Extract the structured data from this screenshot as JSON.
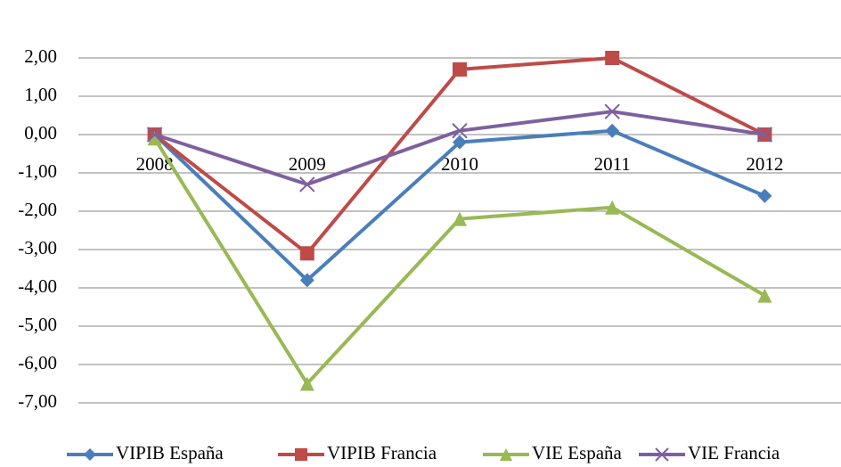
{
  "chart_data": {
    "type": "line",
    "categories": [
      "2008",
      "2009",
      "2010",
      "2011",
      "2012"
    ],
    "series": [
      {
        "name": "VIPIB España",
        "color": "#4a7ebb",
        "marker": "diamond",
        "values": [
          0,
          -3.8,
          -0.2,
          0.1,
          -1.6
        ]
      },
      {
        "name": "VIPIB Francia",
        "color": "#be4b48",
        "marker": "square",
        "values": [
          0,
          -3.1,
          1.7,
          2.0,
          0
        ]
      },
      {
        "name": "VIE España",
        "color": "#98b954",
        "marker": "triangle",
        "values": [
          -0.1,
          -6.5,
          -2.2,
          -1.9,
          -4.2
        ]
      },
      {
        "name": "VIE Francia",
        "color": "#7d60a0",
        "marker": "x",
        "values": [
          0,
          -1.3,
          0.1,
          0.6,
          0
        ]
      }
    ],
    "ylim": [
      -8,
      3
    ],
    "yticks": [
      {
        "value": 2,
        "label": "2,00"
      },
      {
        "value": 1,
        "label": "1,00"
      },
      {
        "value": 0,
        "label": "0,00"
      },
      {
        "value": -1,
        "label": "-1,00"
      },
      {
        "value": -2,
        "label": "-2,00"
      },
      {
        "value": -3,
        "label": "-3,00"
      },
      {
        "value": -4,
        "label": "-4,00"
      },
      {
        "value": -5,
        "label": "-5,00"
      },
      {
        "value": -6,
        "label": "-6,00"
      },
      {
        "value": -7,
        "label": "-7,00"
      }
    ],
    "grid": true,
    "legend": "bottom"
  }
}
